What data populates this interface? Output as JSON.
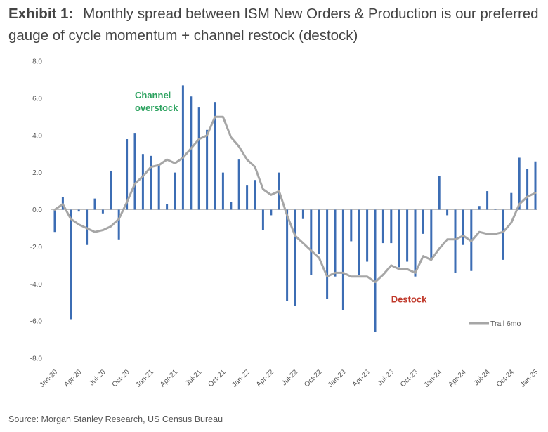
{
  "header": {
    "exhibit": "Exhibit 1:",
    "title": "Monthly spread between ISM New Orders & Production is our preferred gauge of cycle momentum + channel restock (destock)"
  },
  "footer": {
    "source": "Source: Morgan Stanley Research, US Census Bureau"
  },
  "chart_data": {
    "type": "bar",
    "title": "Monthly spread between ISM New Orders & Production is our preferred gauge of cycle momentum + channel restock (destock)",
    "xlabel": "",
    "ylabel": "",
    "ylim": [
      -8,
      8
    ],
    "yticks": [
      "8.0",
      "6.0",
      "4.0",
      "2.0",
      "0.0",
      "-2.0",
      "-4.0",
      "-6.0",
      "-8.0"
    ],
    "grid": false,
    "legend_position": "bottom-right",
    "x": [
      "Jan-20",
      "Feb-20",
      "Mar-20",
      "Apr-20",
      "May-20",
      "Jun-20",
      "Jul-20",
      "Aug-20",
      "Sep-20",
      "Oct-20",
      "Nov-20",
      "Dec-20",
      "Jan-21",
      "Feb-21",
      "Mar-21",
      "Apr-21",
      "May-21",
      "Jun-21",
      "Jul-21",
      "Aug-21",
      "Sep-21",
      "Oct-21",
      "Nov-21",
      "Dec-21",
      "Jan-22",
      "Feb-22",
      "Mar-22",
      "Apr-22",
      "May-22",
      "Jun-22",
      "Jul-22",
      "Aug-22",
      "Sep-22",
      "Oct-22",
      "Nov-22",
      "Dec-22",
      "Jan-23",
      "Feb-23",
      "Mar-23",
      "Apr-23",
      "May-23",
      "Jun-23",
      "Jul-23",
      "Aug-23",
      "Sep-23",
      "Oct-23",
      "Nov-23",
      "Dec-23",
      "Jan-24",
      "Feb-24",
      "Mar-24",
      "Apr-24",
      "May-24",
      "Jun-24",
      "Jul-24",
      "Aug-24",
      "Sep-24",
      "Oct-24",
      "Nov-24",
      "Dec-24",
      "Jan-25"
    ],
    "xtick_labels": [
      "Jan-20",
      "Apr-20",
      "Jul-20",
      "Oct-20",
      "Jan-21",
      "Apr-21",
      "Jul-21",
      "Oct-21",
      "Jan-22",
      "Apr-22",
      "Jul-22",
      "Oct-22",
      "Jan-23",
      "Apr-23",
      "Jul-23",
      "Oct-23",
      "Jan-24",
      "Apr-24",
      "Jul-24",
      "Oct-24",
      "Jan-25"
    ],
    "series": [
      {
        "kind": "bar",
        "color": "#3c6db4",
        "values": [
          -1.2,
          0.7,
          -5.9,
          -0.1,
          -1.9,
          0.6,
          -0.2,
          2.1,
          -1.6,
          3.8,
          4.1,
          3.0,
          2.9,
          2.4,
          0.3,
          2.0,
          6.7,
          6.1,
          5.5,
          4.3,
          5.8,
          2.0,
          0.4,
          2.7,
          1.3,
          1.6,
          -1.1,
          -0.3,
          2.0,
          -4.9,
          -5.2,
          -0.5,
          -3.5,
          -2.4,
          -4.8,
          -3.6,
          -5.4,
          -1.7,
          -3.5,
          -2.8,
          -6.6,
          -1.8,
          -1.8,
          -3.1,
          -2.8,
          -3.6,
          -1.3,
          -2.7,
          1.8,
          -0.3,
          -3.4,
          -1.9,
          -3.3,
          0.2,
          1.0,
          0.0,
          -2.7,
          0.9,
          2.8,
          2.2,
          2.6
        ]
      },
      {
        "kind": "line",
        "name": "Trail 6mo",
        "color": "#a6a6a6",
        "values": [
          0.0,
          0.3,
          -0.5,
          -0.8,
          -1.0,
          -1.2,
          -1.1,
          -0.9,
          -0.5,
          0.4,
          1.4,
          1.8,
          2.3,
          2.4,
          2.7,
          2.5,
          2.8,
          3.3,
          3.8,
          4.0,
          5.0,
          5.0,
          3.9,
          3.4,
          2.7,
          2.3,
          1.1,
          0.8,
          1.0,
          -0.3,
          -1.4,
          -1.8,
          -2.2,
          -2.6,
          -3.6,
          -3.4,
          -3.4,
          -3.6,
          -3.6,
          -3.6,
          -3.9,
          -3.5,
          -3.0,
          -3.2,
          -3.2,
          -3.4,
          -2.5,
          -2.7,
          -2.1,
          -1.6,
          -1.6,
          -1.4,
          -1.7,
          -1.2,
          -1.3,
          -1.3,
          -1.2,
          -0.7,
          0.3,
          0.7,
          0.9
        ]
      }
    ],
    "annotations": [
      {
        "text_lines": [
          "Channel",
          "overstock"
        ],
        "color": "#2ca25f",
        "anchor_x": "Nov-20",
        "anchor_y": 6.0
      },
      {
        "text_lines": [
          "Destock"
        ],
        "color": "#c0392b",
        "anchor_x": "Jul-23",
        "anchor_y": -5.0
      }
    ]
  }
}
